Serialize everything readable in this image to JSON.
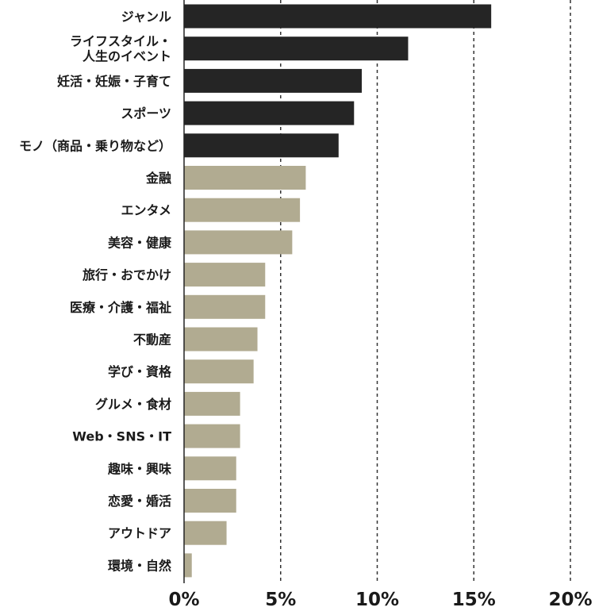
{
  "chart_data": {
    "type": "bar",
    "orientation": "horizontal",
    "title": "",
    "xlabel": "",
    "ylabel": "",
    "xlim": [
      0,
      20
    ],
    "x_ticks": [
      "0%",
      "5%",
      "10%",
      "15%",
      "20%"
    ],
    "grid": "vertical dashed",
    "categories": [
      "ジャンル",
      "ライフスタイル・\n人生のイベント",
      "妊活・妊娠・子育て",
      "スポーツ",
      "モノ（商品・乗り物など）",
      "金融",
      "エンタメ",
      "美容・健康",
      "旅行・おでかけ",
      "医療・介護・福祉",
      "不動産",
      "学び・資格",
      "グルメ・食材",
      "Web・SNS・IT",
      "趣味・興味",
      "恋愛・婚活",
      "アウトドア",
      "環境・自然"
    ],
    "values": [
      15.9,
      11.6,
      9.2,
      8.8,
      8.0,
      6.3,
      6.0,
      5.6,
      4.2,
      4.2,
      3.8,
      3.6,
      2.9,
      2.9,
      2.7,
      2.7,
      2.2,
      0.4
    ],
    "bar_colors": [
      "#252525",
      "#252525",
      "#252525",
      "#252525",
      "#252525",
      "#b1ab91",
      "#b1ab91",
      "#b1ab91",
      "#b1ab91",
      "#b1ab91",
      "#b1ab91",
      "#b1ab91",
      "#b1ab91",
      "#b1ab91",
      "#b1ab91",
      "#b1ab91",
      "#b1ab91",
      "#b1ab91"
    ]
  }
}
